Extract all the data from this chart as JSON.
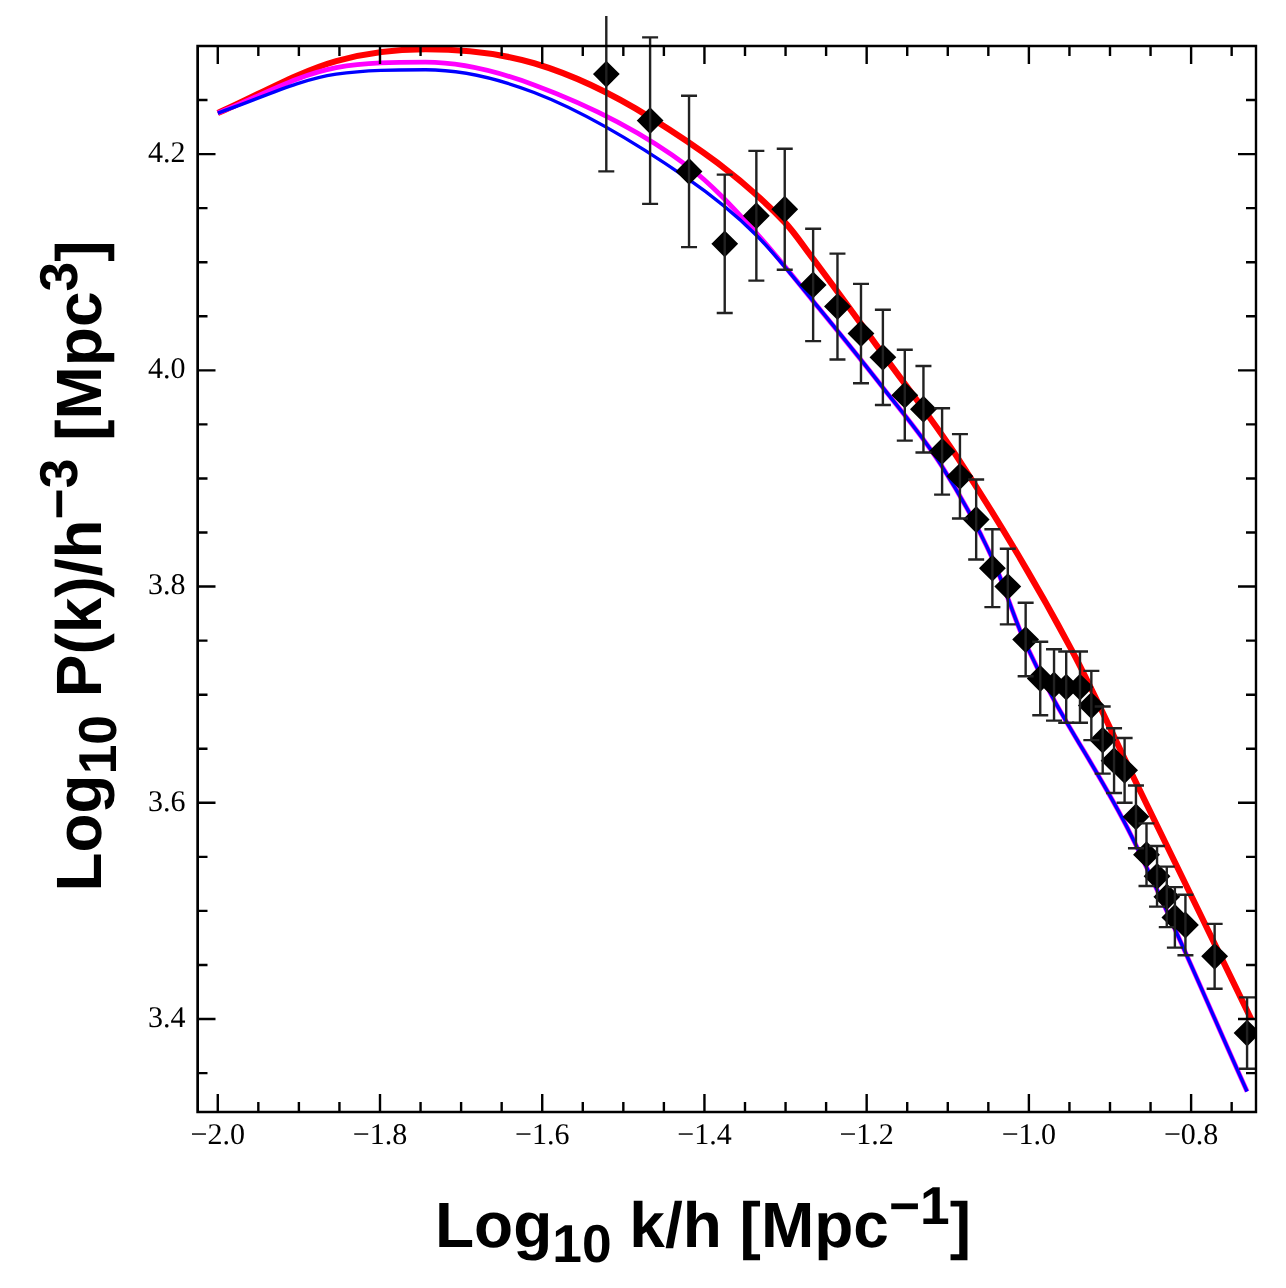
{
  "chart_data": {
    "type": "scatter",
    "xlabel": "Log$_{10}$ k/h [Mpc$^{−1}$]",
    "ylabel": "Log$_{10}$ P(k)/h$^{−3}$ [Mpc$^{3}$]",
    "xlim": [
      -2.025,
      -0.72
    ],
    "ylim": [
      3.314,
      4.3
    ],
    "xticks": [
      {
        "value": -2,
        "label": "−2.0"
      },
      {
        "value": -1.95,
        "label": null
      },
      {
        "value": -1.9,
        "label": null
      },
      {
        "value": -1.85,
        "label": null
      },
      {
        "value": -1.8,
        "label": "−1.8"
      },
      {
        "value": -1.75,
        "label": null
      },
      {
        "value": -1.7,
        "label": null
      },
      {
        "value": -1.65,
        "label": null
      },
      {
        "value": -1.6,
        "label": "−1.6"
      },
      {
        "value": -1.55,
        "label": null
      },
      {
        "value": -1.5,
        "label": null
      },
      {
        "value": -1.45,
        "label": null
      },
      {
        "value": -1.4,
        "label": "−1.4"
      },
      {
        "value": -1.35,
        "label": null
      },
      {
        "value": -1.3,
        "label": null
      },
      {
        "value": -1.25,
        "label": null
      },
      {
        "value": -1.2,
        "label": "−1.2"
      },
      {
        "value": -1.15,
        "label": null
      },
      {
        "value": -1.1,
        "label": null
      },
      {
        "value": -1.05,
        "label": null
      },
      {
        "value": -1,
        "label": "−1.0"
      },
      {
        "value": -0.95,
        "label": null
      },
      {
        "value": -0.9,
        "label": null
      },
      {
        "value": -0.85,
        "label": null
      },
      {
        "value": -0.8,
        "label": "−0.8"
      },
      {
        "value": -0.75,
        "label": null
      }
    ],
    "yticks": [
      {
        "value": 3.35,
        "label": null
      },
      {
        "value": 3.4,
        "label": "3.4"
      },
      {
        "value": 3.45,
        "label": null
      },
      {
        "value": 3.5,
        "label": null
      },
      {
        "value": 3.55,
        "label": null
      },
      {
        "value": 3.6,
        "label": "3.6"
      },
      {
        "value": 3.65,
        "label": null
      },
      {
        "value": 3.7,
        "label": null
      },
      {
        "value": 3.75,
        "label": null
      },
      {
        "value": 3.8,
        "label": "3.8"
      },
      {
        "value": 3.85,
        "label": null
      },
      {
        "value": 3.9,
        "label": null
      },
      {
        "value": 3.95,
        "label": null
      },
      {
        "value": 4,
        "label": "4.0"
      },
      {
        "value": 4.05,
        "label": null
      },
      {
        "value": 4.1,
        "label": null
      },
      {
        "value": 4.15,
        "label": null
      },
      {
        "value": 4.2,
        "label": "4.2"
      },
      {
        "value": 4.25,
        "label": null
      }
    ],
    "grid": false,
    "legend": false,
    "series": [
      {
        "marker": "diamond",
        "color": "#000000",
        "x": [
          -1.521,
          -1.467,
          -1.419,
          -1.375,
          -1.336,
          -1.301,
          -1.266,
          -1.236,
          -1.207,
          -1.18,
          -1.153,
          -1.13,
          -1.107,
          -1.085,
          -1.065,
          -1.045,
          -1.026,
          -1.004,
          -0.986,
          -0.969,
          -0.954,
          -0.937,
          -0.923,
          -0.909,
          -0.895,
          -0.882,
          -0.868,
          -0.855,
          -0.842,
          -0.83,
          -0.82,
          -0.807,
          -0.771,
          -0.731
        ],
        "values": [
          4.274,
          4.231,
          4.184,
          4.117,
          4.143,
          4.149,
          4.079,
          4.059,
          4.034,
          4.012,
          3.977,
          3.964,
          3.925,
          3.902,
          3.862,
          3.817,
          3.8,
          3.751,
          3.715,
          3.709,
          3.707,
          3.707,
          3.69,
          3.658,
          3.639,
          3.63,
          3.587,
          3.552,
          3.532,
          3.513,
          3.494,
          3.487,
          3.458,
          3.387
        ],
        "errors": [
          0.09,
          0.077,
          0.07,
          0.064,
          0.06,
          0.056,
          0.052,
          0.049,
          0.046,
          0.044,
          0.042,
          0.04,
          0.04,
          0.039,
          0.037,
          0.036,
          0.035,
          0.034,
          0.034,
          0.033,
          0.033,
          0.033,
          0.032,
          0.031,
          0.03,
          0.03,
          0.029,
          0.029,
          0.028,
          0.028,
          0.028,
          0.028,
          0.03,
          0.033
        ]
      },
      {
        "type": "line",
        "marker": "none",
        "color": "#ff0000",
        "x": [
          -2,
          -1.854,
          -1.744,
          -1.61,
          -1.467,
          -1.301,
          -1.266,
          -1.18,
          -1.086,
          -0.947,
          -0.87,
          -0.792,
          -0.726
        ],
        "values": [
          4.238,
          4.286,
          4.297,
          4.284,
          4.234,
          4.137,
          4.103,
          4.015,
          3.917,
          3.741,
          3.622,
          3.502,
          3.4
        ]
      },
      {
        "type": "line",
        "marker": "none",
        "color": "#ff00ff",
        "x": [
          -2,
          -1.854,
          -1.744,
          -1.61,
          -1.419,
          -1.336,
          -1.266,
          -1.18,
          -1.107,
          -1.045,
          -1.004,
          -0.874,
          -0.731
        ],
        "values": [
          4.238,
          4.28,
          4.285,
          4.264,
          4.188,
          4.127,
          4.064,
          3.984,
          3.911,
          3.826,
          3.747,
          3.57,
          3.333
        ]
      },
      {
        "type": "line",
        "marker": "none",
        "color": "#0000ff",
        "x": [
          -2,
          -1.854,
          -1.744,
          -1.61,
          -1.422,
          -1.336,
          -1.266,
          -1.18,
          -1.107,
          -1.045,
          -1.004,
          -0.874,
          -0.731
        ],
        "values": [
          4.238,
          4.274,
          4.278,
          4.257,
          4.178,
          4.125,
          4.064,
          3.984,
          3.911,
          3.826,
          3.747,
          3.57,
          3.333
        ]
      }
    ]
  }
}
